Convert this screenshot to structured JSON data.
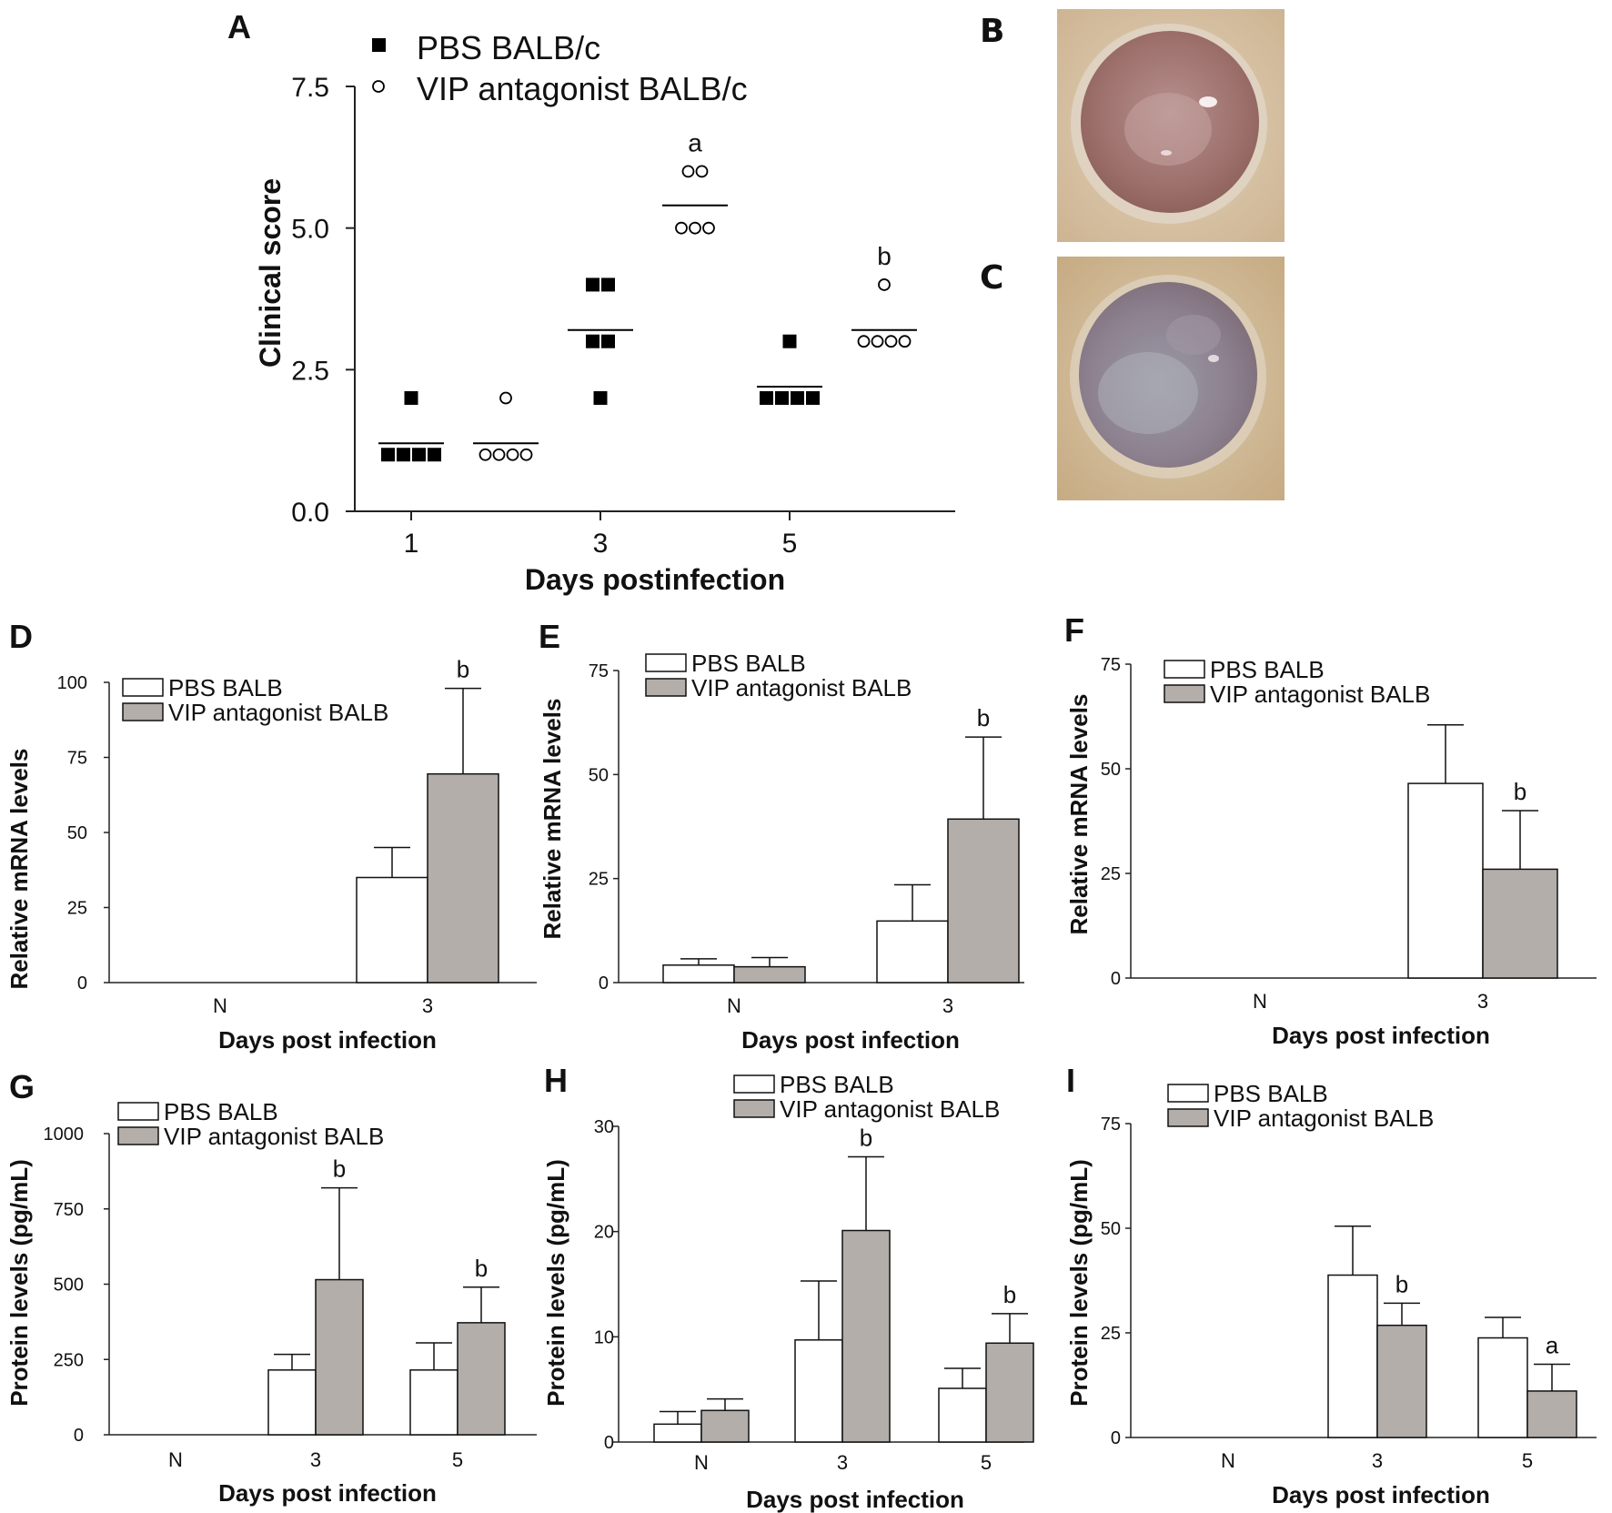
{
  "panel_labels": [
    "A",
    "B",
    "C",
    "D",
    "E",
    "F",
    "G",
    "H",
    "I"
  ],
  "images": {
    "B": {
      "label": "B",
      "description": "photo of infected cornea, PBS-treated"
    },
    "C": {
      "label": "C",
      "description": "photo of infected cornea, VIP antagonist-treated"
    }
  },
  "colors": {
    "pbs_bar": "#ffffff",
    "vip_bar": "#b3aeaa",
    "axis": "#222222"
  },
  "chart_data": [
    {
      "panel": "A",
      "type": "scatter",
      "xlabel": "Days postinfection",
      "ylabel": "Clinical score",
      "ylim": [
        0,
        7.5
      ],
      "yticks": [
        "0.0",
        "2.5",
        "5.0",
        "7.5"
      ],
      "x_ticks": [
        "1",
        "3",
        "5"
      ],
      "legend": [
        "PBS BALB/c",
        "VIP antagonist BALB/c"
      ],
      "series": [
        {
          "name": "PBS BALB/c",
          "marker": "filled-square",
          "groups": [
            {
              "day": "1",
              "points": [
                2,
                1,
                1,
                1,
                1
              ],
              "mean": 1.2
            },
            {
              "day": "3",
              "points": [
                4,
                4,
                3,
                3,
                2
              ],
              "mean": 3.2
            },
            {
              "day": "5",
              "points": [
                3,
                2,
                2,
                2,
                2
              ],
              "mean": 2.2
            }
          ]
        },
        {
          "name": "VIP antagonist BALB/c",
          "marker": "open-circle",
          "groups": [
            {
              "day": "1",
              "points": [
                2,
                1,
                1,
                1,
                1
              ],
              "mean": 1.2,
              "sig": ""
            },
            {
              "day": "3",
              "points": [
                6,
                6,
                5,
                5,
                5
              ],
              "mean": 5.4,
              "sig": "a"
            },
            {
              "day": "5",
              "points": [
                4,
                3,
                3,
                3,
                3
              ],
              "mean": 3.2,
              "sig": "b"
            }
          ]
        }
      ]
    },
    {
      "panel": "D",
      "type": "bar",
      "categories": [
        "N",
        "3"
      ],
      "xlabel": "Days post infection",
      "ylabel": "Relative mRNA levels",
      "ylim": [
        0,
        100
      ],
      "yticks": [
        "0",
        "25",
        "50",
        "75",
        "100"
      ],
      "series": [
        {
          "name": "PBS BALB",
          "values": [
            0,
            35
          ],
          "errors": [
            0,
            10
          ]
        },
        {
          "name": "VIP antagonist BALB",
          "values": [
            0,
            69.5
          ],
          "errors": [
            0,
            28.5
          ]
        }
      ],
      "sig": [
        {
          "category": "3",
          "series": 1,
          "label": "b"
        }
      ]
    },
    {
      "panel": "E",
      "type": "bar",
      "categories": [
        "N",
        "3"
      ],
      "xlabel": "Days post infection",
      "ylabel": "Relative mRNA levels",
      "ylim": [
        0,
        75
      ],
      "yticks": [
        "0",
        "25",
        "50",
        "75"
      ],
      "series": [
        {
          "name": "PBS BALB",
          "values": [
            4.2,
            14.8
          ],
          "errors": [
            1.5,
            8.7
          ]
        },
        {
          "name": "VIP antagonist BALB",
          "values": [
            3.8,
            39.3
          ],
          "errors": [
            2.2,
            19.7
          ]
        }
      ],
      "sig": [
        {
          "category": "3",
          "series": 1,
          "label": "b"
        }
      ]
    },
    {
      "panel": "F",
      "type": "bar",
      "categories": [
        "N",
        "3"
      ],
      "xlabel": "Days post infection",
      "ylabel": "Relative mRNA levels",
      "ylim": [
        0,
        75
      ],
      "yticks": [
        "0",
        "25",
        "50",
        "75"
      ],
      "series": [
        {
          "name": "PBS BALB",
          "values": [
            0,
            46.5
          ],
          "errors": [
            0,
            14
          ]
        },
        {
          "name": "VIP antagonist BALB",
          "values": [
            0,
            26
          ],
          "errors": [
            0,
            14
          ]
        }
      ],
      "sig": [
        {
          "category": "3",
          "series": 1,
          "label": "b"
        }
      ]
    },
    {
      "panel": "G",
      "type": "bar",
      "categories": [
        "N",
        "3",
        "5"
      ],
      "xlabel": "Days post infection",
      "ylabel": "Protein levels (pg/mL)",
      "ylim": [
        0,
        1000
      ],
      "yticks": [
        "0",
        "250",
        "500",
        "750",
        "1000"
      ],
      "series": [
        {
          "name": "PBS BALB",
          "values": [
            0,
            215,
            215
          ],
          "errors": [
            0,
            52,
            90
          ]
        },
        {
          "name": "VIP antagonist BALB",
          "values": [
            0,
            515,
            372
          ],
          "errors": [
            0,
            305,
            118
          ]
        }
      ],
      "sig": [
        {
          "category": "3",
          "series": 1,
          "label": "b"
        },
        {
          "category": "5",
          "series": 1,
          "label": "b"
        }
      ]
    },
    {
      "panel": "H",
      "type": "bar",
      "categories": [
        "N",
        "3",
        "5"
      ],
      "xlabel": "Days post infection",
      "ylabel": "Protein levels (pg/mL)",
      "ylim": [
        0,
        30
      ],
      "yticks": [
        "0",
        "10",
        "20",
        "30"
      ],
      "series": [
        {
          "name": "PBS BALB",
          "values": [
            1.7,
            9.7,
            5.1
          ],
          "errors": [
            1.2,
            5.6,
            1.9
          ]
        },
        {
          "name": "VIP antagonist BALB",
          "values": [
            3.0,
            20.1,
            9.4
          ],
          "errors": [
            1.1,
            7.0,
            2.8
          ]
        }
      ],
      "sig": [
        {
          "category": "3",
          "series": 1,
          "label": "b"
        },
        {
          "category": "5",
          "series": 1,
          "label": "b"
        }
      ]
    },
    {
      "panel": "I",
      "type": "bar",
      "categories": [
        "N",
        "3",
        "5"
      ],
      "xlabel": "Days post infection",
      "ylabel": "Protein levels (pg/mL)",
      "ylim": [
        0,
        75
      ],
      "yticks": [
        "0",
        "25",
        "50",
        "75"
      ],
      "series": [
        {
          "name": "PBS BALB",
          "values": [
            0,
            38.8,
            23.8
          ],
          "errors": [
            0,
            11.7,
            4.9
          ]
        },
        {
          "name": "VIP antagonist BALB",
          "values": [
            0,
            26.8,
            11.1
          ],
          "errors": [
            0,
            5.3,
            6.4
          ]
        }
      ],
      "sig": [
        {
          "category": "3",
          "series": 1,
          "label": "b"
        },
        {
          "category": "5",
          "series": 1,
          "label": "a"
        }
      ]
    }
  ]
}
